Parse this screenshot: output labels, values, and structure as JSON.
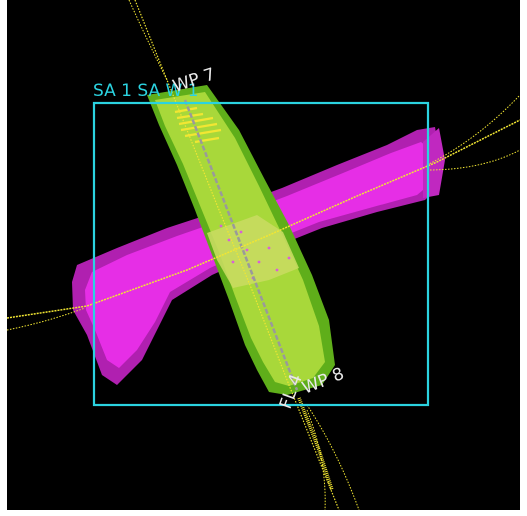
{
  "view": {
    "background_color": "#000000",
    "frame_color": "#ffffff"
  },
  "area": {
    "label": "SA 1 SA W 1",
    "color": "#2bd3e0"
  },
  "waypoints": [
    {
      "label": "WP 7",
      "color": "#e8e8e8"
    },
    {
      "label": "WP 8",
      "color": "#e8e8e8"
    }
  ],
  "flight_line": {
    "label": "FL 4",
    "color": "#e8e8e8"
  },
  "swaths": {
    "magenta_color": "#e62ee6",
    "dark_magenta_color": "#b020b0",
    "green_color": "#78c81e",
    "light_green_color": "#a8d83a"
  },
  "track_color": "#f2e632"
}
